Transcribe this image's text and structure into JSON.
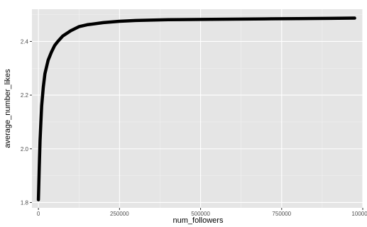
{
  "chart_data": {
    "type": "line",
    "xlabel": "num_followers",
    "ylabel": "average_number_likes",
    "xlim": [
      -20000,
      1000000
    ],
    "ylim": [
      1.78,
      2.52
    ],
    "x_ticks": [
      0,
      250000,
      500000,
      750000,
      1000000
    ],
    "x_tick_labels": [
      "0",
      "250000",
      "500000",
      "750000",
      "1000000"
    ],
    "y_ticks": [
      1.8,
      2.0,
      2.2,
      2.4
    ],
    "y_tick_labels": [
      "1.8",
      "2.0",
      "2.2",
      "2.4"
    ],
    "grid": true,
    "colors": {
      "panel": "#e5e5e5",
      "grid_major": "#ffffff",
      "grid_minor": "#f1f1f1",
      "line": "#000000"
    },
    "series": [
      {
        "x": [
          0,
          2500,
          5000,
          7500,
          10000,
          15000,
          20000,
          30000,
          40000,
          50000,
          60000,
          75000,
          100000,
          125000,
          150000,
          200000,
          250000,
          300000,
          400000,
          500000,
          600000,
          700000,
          800000,
          900000,
          975000
        ],
        "y": [
          1.81,
          1.93,
          2.03,
          2.1,
          2.16,
          2.23,
          2.28,
          2.33,
          2.36,
          2.385,
          2.4,
          2.42,
          2.44,
          2.455,
          2.462,
          2.47,
          2.475,
          2.478,
          2.481,
          2.482,
          2.483,
          2.484,
          2.485,
          2.486,
          2.487
        ]
      }
    ]
  }
}
